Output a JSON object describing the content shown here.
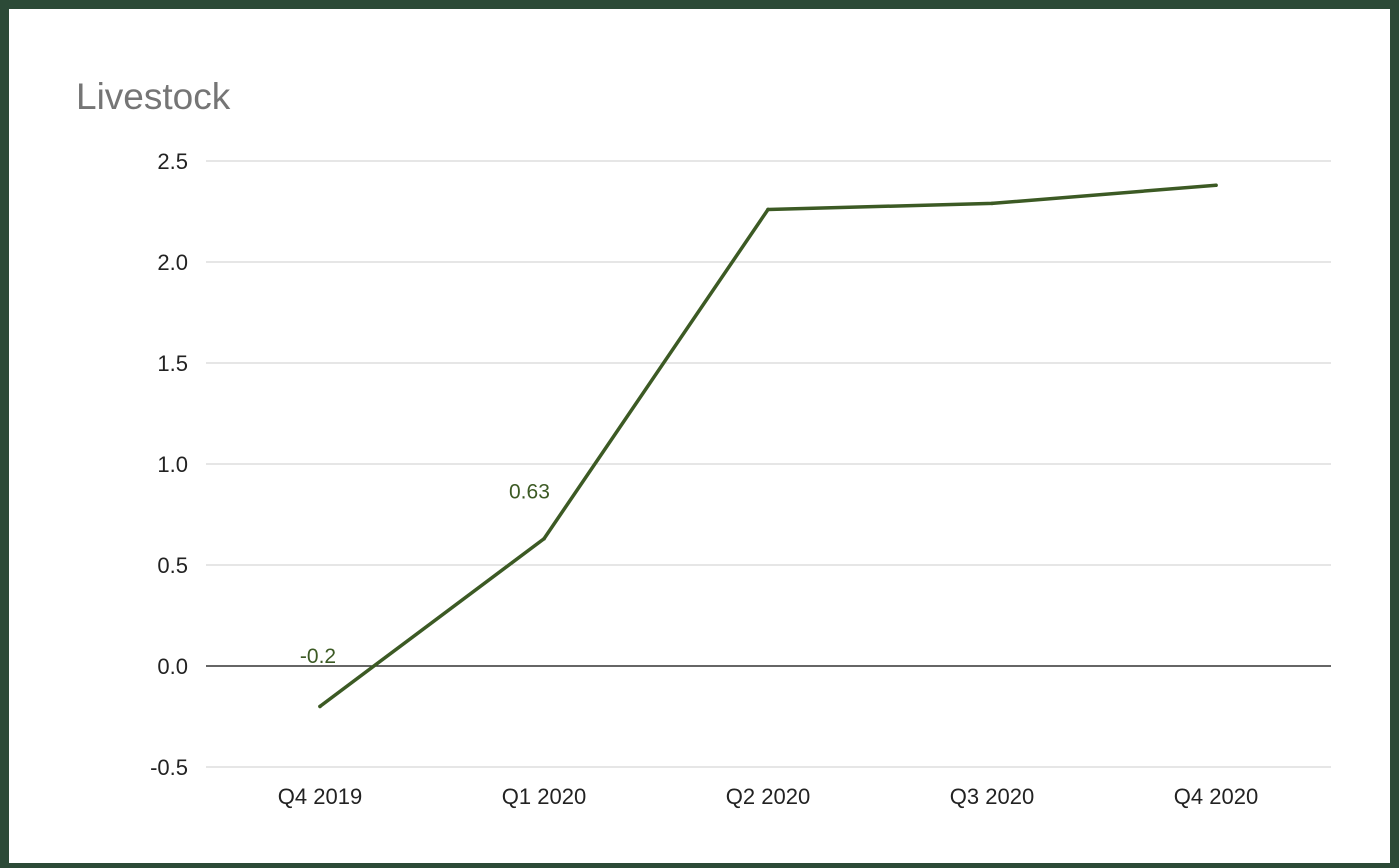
{
  "chart_data": {
    "type": "line",
    "title": "Livestock",
    "xlabel": "",
    "ylabel": "",
    "categories": [
      "Q4 2019",
      "Q1 2020",
      "Q2 2020",
      "Q3 2020",
      "Q4 2020"
    ],
    "series": [
      {
        "values": [
          -0.2,
          0.63,
          2.26,
          2.29,
          2.38
        ],
        "color": "#3c5a24"
      }
    ],
    "data_labels": [
      {
        "index": 0,
        "text": "-0.2"
      },
      {
        "index": 1,
        "text": "0.63"
      }
    ],
    "ylim": [
      -0.5,
      2.5
    ],
    "yticks": [
      "2.5",
      "2.0",
      "1.5",
      "1.0",
      "0.5",
      "0.0",
      "-0.5"
    ],
    "grid": true,
    "legend": "none",
    "colors": {
      "frame": "#2c4a37",
      "background": "#ffffff",
      "gridline": "#cccccc",
      "zero_line": "#333333",
      "title": "#757575",
      "tick_text": "#222222"
    }
  }
}
